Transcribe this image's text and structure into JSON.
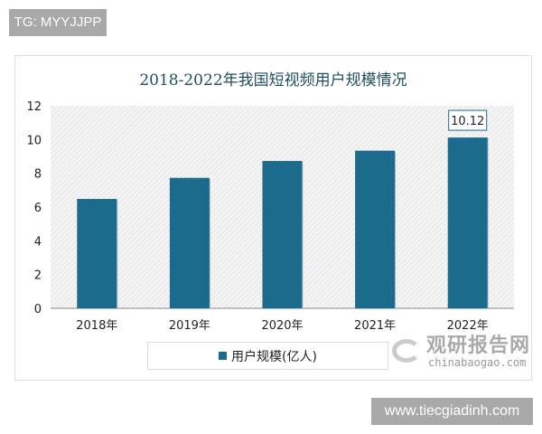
{
  "watermarks": {
    "top_left": "TG: MYYJJPP",
    "bottom_right": "www.tiecgiadinh.com",
    "logo_cn": "观研报告网",
    "logo_en": "chinabaogao.com"
  },
  "chart_data": {
    "type": "bar",
    "title": "2018-2022年我国短视频用户规模情况",
    "categories": [
      "2018年",
      "2019年",
      "2020年",
      "2021年",
      "2022年"
    ],
    "series": [
      {
        "name": "用户规模(亿人)",
        "values": [
          6.48,
          7.73,
          8.73,
          9.34,
          10.12
        ],
        "color": "#1d6b8c"
      }
    ],
    "data_labels": {
      "2022年": "10.12"
    },
    "ylim": [
      0,
      12
    ],
    "yticks": [
      "0",
      "2",
      "4",
      "6",
      "8",
      "10",
      "12"
    ],
    "grid": false,
    "plot_background": "hatched light gray",
    "legend_position": "bottom",
    "xlabel": "",
    "ylabel": ""
  }
}
